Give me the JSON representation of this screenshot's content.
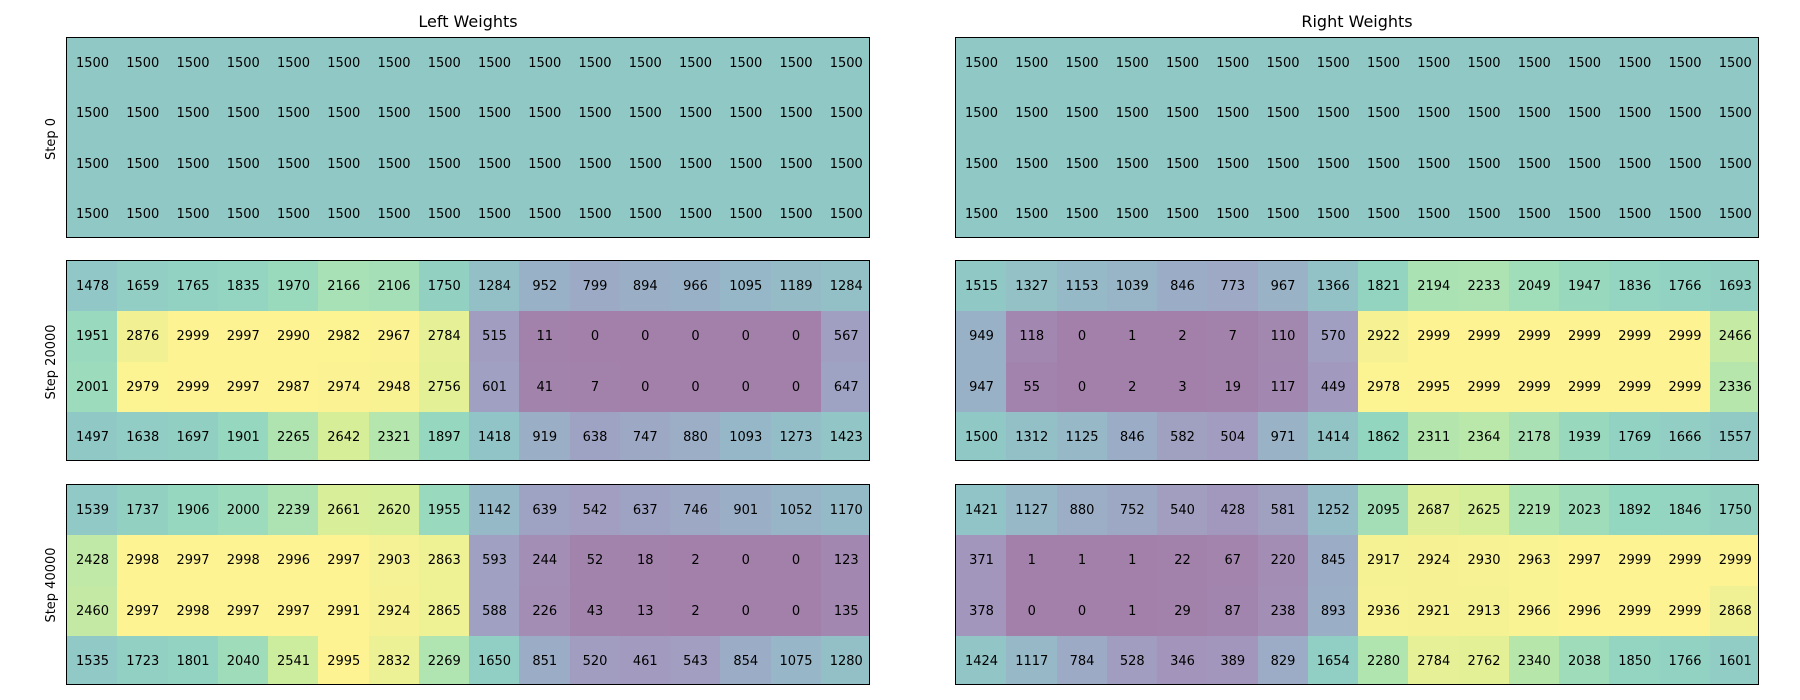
{
  "chart_data": {
    "type": "heatmap",
    "col_titles": [
      "Left Weights",
      "Right Weights"
    ],
    "row_labels": [
      "Step 0",
      "Step 20000",
      "Step 40000"
    ],
    "value_range": [
      0,
      3000
    ],
    "colormap": "viridis",
    "cell_alpha": 0.5,
    "panels": [
      {
        "step": "Step 0",
        "left": [
          [
            1500,
            1500,
            1500,
            1500,
            1500,
            1500,
            1500,
            1500,
            1500,
            1500,
            1500,
            1500,
            1500,
            1500,
            1500,
            1500
          ],
          [
            1500,
            1500,
            1500,
            1500,
            1500,
            1500,
            1500,
            1500,
            1500,
            1500,
            1500,
            1500,
            1500,
            1500,
            1500,
            1500
          ],
          [
            1500,
            1500,
            1500,
            1500,
            1500,
            1500,
            1500,
            1500,
            1500,
            1500,
            1500,
            1500,
            1500,
            1500,
            1500,
            1500
          ],
          [
            1500,
            1500,
            1500,
            1500,
            1500,
            1500,
            1500,
            1500,
            1500,
            1500,
            1500,
            1500,
            1500,
            1500,
            1500,
            1500
          ]
        ],
        "right": [
          [
            1500,
            1500,
            1500,
            1500,
            1500,
            1500,
            1500,
            1500,
            1500,
            1500,
            1500,
            1500,
            1500,
            1500,
            1500,
            1500
          ],
          [
            1500,
            1500,
            1500,
            1500,
            1500,
            1500,
            1500,
            1500,
            1500,
            1500,
            1500,
            1500,
            1500,
            1500,
            1500,
            1500
          ],
          [
            1500,
            1500,
            1500,
            1500,
            1500,
            1500,
            1500,
            1500,
            1500,
            1500,
            1500,
            1500,
            1500,
            1500,
            1500,
            1500
          ],
          [
            1500,
            1500,
            1500,
            1500,
            1500,
            1500,
            1500,
            1500,
            1500,
            1500,
            1500,
            1500,
            1500,
            1500,
            1500,
            1500
          ]
        ]
      },
      {
        "step": "Step 20000",
        "left": [
          [
            1478,
            1659,
            1765,
            1835,
            1970,
            2166,
            2106,
            1750,
            1284,
            952,
            799,
            894,
            966,
            1095,
            1189,
            1284
          ],
          [
            1951,
            2876,
            2999,
            2997,
            2990,
            2982,
            2967,
            2784,
            515,
            11,
            0,
            0,
            0,
            0,
            0,
            567
          ],
          [
            2001,
            2979,
            2999,
            2997,
            2987,
            2974,
            2948,
            2756,
            601,
            41,
            7,
            0,
            0,
            0,
            0,
            647
          ],
          [
            1497,
            1638,
            1697,
            1901,
            2265,
            2642,
            2321,
            1897,
            1418,
            919,
            638,
            747,
            880,
            1093,
            1273,
            1423
          ]
        ],
        "right": [
          [
            1515,
            1327,
            1153,
            1039,
            846,
            773,
            967,
            1366,
            1821,
            2194,
            2233,
            2049,
            1947,
            1836,
            1766,
            1693
          ],
          [
            949,
            118,
            0,
            1,
            2,
            7,
            110,
            570,
            2922,
            2999,
            2999,
            2999,
            2999,
            2999,
            2999,
            2466
          ],
          [
            947,
            55,
            0,
            2,
            3,
            19,
            117,
            449,
            2978,
            2995,
            2999,
            2999,
            2999,
            2999,
            2999,
            2336
          ],
          [
            1500,
            1312,
            1125,
            846,
            582,
            504,
            971,
            1414,
            1862,
            2311,
            2364,
            2178,
            1939,
            1769,
            1666,
            1557
          ]
        ]
      },
      {
        "step": "Step 40000",
        "left": [
          [
            1539,
            1737,
            1906,
            2000,
            2239,
            2661,
            2620,
            1955,
            1142,
            639,
            542,
            637,
            746,
            901,
            1052,
            1170
          ],
          [
            2428,
            2998,
            2997,
            2998,
            2996,
            2997,
            2903,
            2863,
            593,
            244,
            52,
            18,
            2,
            0,
            0,
            123
          ],
          [
            2460,
            2997,
            2998,
            2997,
            2997,
            2991,
            2924,
            2865,
            588,
            226,
            43,
            13,
            2,
            0,
            0,
            135
          ],
          [
            1535,
            1723,
            1801,
            2040,
            2541,
            2995,
            2832,
            2269,
            1650,
            851,
            520,
            461,
            543,
            854,
            1075,
            1280
          ]
        ],
        "right": [
          [
            1421,
            1127,
            880,
            752,
            540,
            428,
            581,
            1252,
            2095,
            2687,
            2625,
            2219,
            2023,
            1892,
            1846,
            1750
          ],
          [
            371,
            1,
            1,
            1,
            22,
            67,
            220,
            845,
            2917,
            2924,
            2930,
            2963,
            2997,
            2999,
            2999,
            2999
          ],
          [
            378,
            0,
            0,
            1,
            29,
            87,
            238,
            893,
            2936,
            2921,
            2913,
            2966,
            2996,
            2999,
            2999,
            2868
          ],
          [
            1424,
            1117,
            784,
            528,
            346,
            389,
            829,
            1654,
            2280,
            2784,
            2762,
            2340,
            2038,
            1850,
            1766,
            1601
          ]
        ]
      }
    ]
  }
}
